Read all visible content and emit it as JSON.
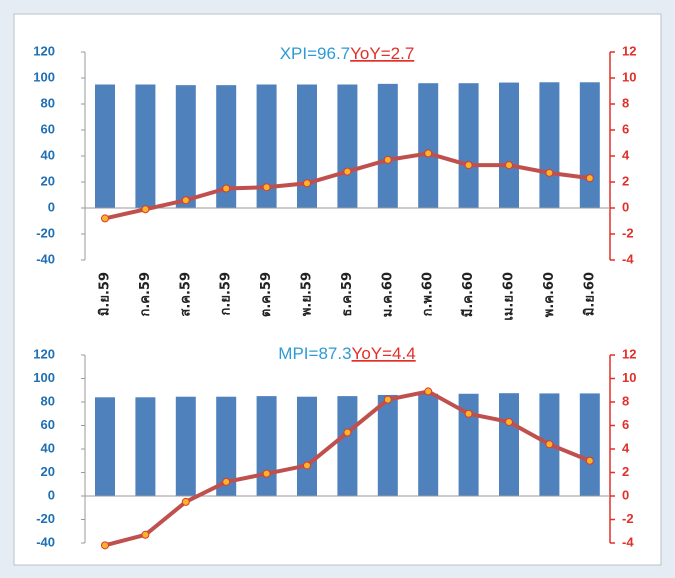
{
  "chart_data": [
    {
      "type": "combo",
      "title": "XPI=96.7",
      "annotation": "YoY=2.7",
      "categories": [
        "มิ.ย.59",
        "ก.ค.59",
        "ส.ค.59",
        "ก.ย.59",
        "ต.ค.59",
        "พ.ย.59",
        "ธ.ค.59",
        "ม.ค.60",
        "ก.พ.60",
        "มี.ค.60",
        "เม.ย.60",
        "พ.ค.60",
        "มิ.ย.60"
      ],
      "series": [
        {
          "kind": "bar",
          "color": "#4f81bd",
          "values": [
            95,
            95,
            94.5,
            94.5,
            95,
            95,
            95,
            95.5,
            96,
            96,
            96.5,
            96.7,
            96.7
          ]
        },
        {
          "kind": "line",
          "axis": "y2",
          "color": "#c0504d",
          "marker_color": "#f7b52c",
          "values": [
            -0.8,
            -0.1,
            0.6,
            1.5,
            1.6,
            1.9,
            2.8,
            3.7,
            4.2,
            3.3,
            3.3,
            2.7,
            2.3
          ]
        }
      ],
      "ylim": [
        -40,
        120
      ],
      "yticks": [
        -40,
        -20,
        0,
        20,
        40,
        60,
        80,
        100,
        120
      ],
      "y2lim": [
        -4,
        12
      ],
      "y2ticks": [
        -4,
        -2,
        0,
        2,
        4,
        6,
        8,
        10,
        12
      ]
    },
    {
      "type": "combo",
      "title": "MPI=87.3",
      "annotation": "YoY=4.4",
      "categories": [
        null,
        null,
        null,
        null,
        null,
        null,
        null,
        null,
        null,
        null,
        null,
        null,
        null
      ],
      "series": [
        {
          "kind": "bar",
          "color": "#4f81bd",
          "values": [
            84,
            84,
            84.5,
            84.5,
            85,
            84.5,
            85,
            86,
            87,
            87,
            87.5,
            87.3,
            87.3
          ]
        },
        {
          "kind": "line",
          "axis": "y2",
          "color": "#c0504d",
          "marker_color": "#f7b52c",
          "values": [
            -4.2,
            -3.3,
            -0.5,
            1.2,
            1.9,
            2.6,
            5.4,
            8.2,
            8.9,
            7.0,
            6.3,
            4.4,
            3.0
          ]
        }
      ],
      "ylim": [
        -40,
        120
      ],
      "yticks": [
        -40,
        -20,
        0,
        20,
        40,
        60,
        80,
        100,
        120
      ],
      "y2lim": [
        -4,
        12
      ],
      "y2ticks": [
        -4,
        -2,
        0,
        2,
        4,
        6,
        8,
        10,
        12
      ]
    }
  ]
}
